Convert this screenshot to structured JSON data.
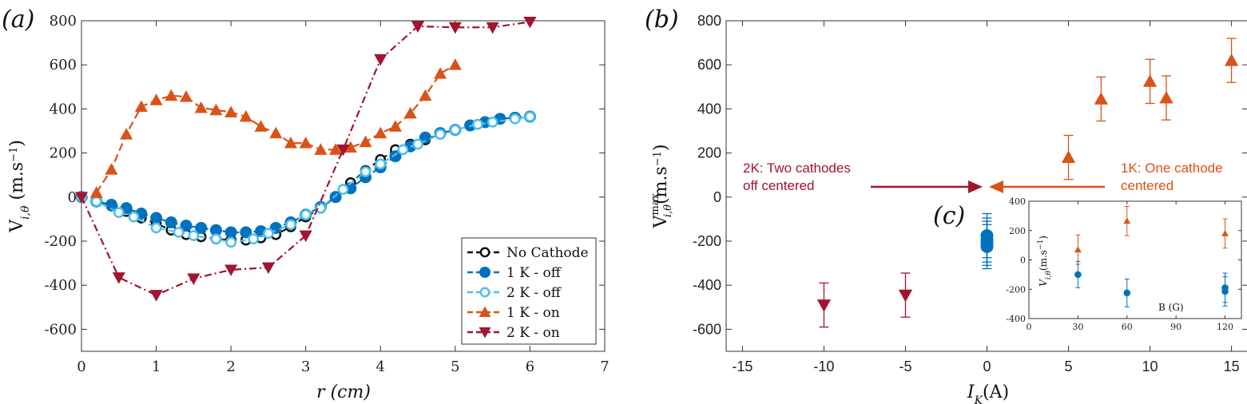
{
  "chart_data": [
    {
      "type": "line",
      "panel_label": "(a)",
      "xlabel": "r (cm)",
      "ylabel": "V_{i,θ} (m.s⁻¹)",
      "xlim": [
        0,
        7
      ],
      "ylim": [
        -700,
        800
      ],
      "xticks": [
        "0",
        "1",
        "2",
        "3",
        "4",
        "5",
        "6",
        "7"
      ],
      "yticks": [
        "-600",
        "-400",
        "-200",
        "0",
        "200",
        "400",
        "600",
        "800"
      ],
      "legend_position": "bottom-right",
      "series": [
        {
          "name": "No Cathode",
          "color": "#111111",
          "marker": "open-circle",
          "x": [
            0,
            0.2,
            0.4,
            0.6,
            0.8,
            1.0,
            1.2,
            1.4,
            1.6,
            1.8,
            2.0,
            2.2,
            2.4,
            2.6,
            2.8,
            3.0,
            3.2,
            3.4,
            3.6,
            3.8,
            4.0,
            4.2,
            4.4,
            4.6,
            4.8,
            5.0
          ],
          "values": [
            0,
            -15,
            -40,
            -65,
            -95,
            -120,
            -150,
            -170,
            -180,
            -190,
            -195,
            -195,
            -185,
            -170,
            -135,
            -90,
            -50,
            0,
            65,
            120,
            170,
            215,
            240,
            260,
            285,
            305
          ]
        },
        {
          "name": "1 K - off",
          "color": "#0072BD",
          "marker": "filled-circle",
          "x": [
            0,
            0.2,
            0.4,
            0.6,
            0.8,
            1.0,
            1.2,
            1.4,
            1.6,
            1.8,
            2.0,
            2.2,
            2.4,
            2.6,
            2.8,
            3.0,
            3.2,
            3.4,
            3.6,
            3.8,
            4.0,
            4.2,
            4.4,
            4.6,
            4.8,
            5.0,
            5.2,
            5.4,
            5.6,
            5.8,
            6.0
          ],
          "values": [
            0,
            -20,
            -35,
            -50,
            -75,
            -95,
            -115,
            -130,
            -140,
            -150,
            -160,
            -160,
            -155,
            -140,
            -115,
            -80,
            -45,
            0,
            40,
            90,
            135,
            185,
            230,
            270,
            290,
            305,
            325,
            340,
            355,
            360,
            365
          ]
        },
        {
          "name": "2 K - off",
          "color": "#4DBEEE",
          "marker": "open-circle",
          "x": [
            0,
            0.2,
            0.5,
            0.7,
            1.0,
            1.3,
            1.5,
            1.8,
            2.0,
            2.3,
            2.5,
            2.8,
            3.0,
            3.2,
            3.5,
            3.8,
            4.0,
            4.3,
            4.5,
            4.8,
            5.0,
            5.3,
            5.5,
            5.8,
            6.0
          ],
          "values": [
            0,
            -20,
            -70,
            -90,
            -140,
            -160,
            -175,
            -190,
            -205,
            -190,
            -165,
            -125,
            -80,
            -50,
            35,
            115,
            150,
            215,
            240,
            285,
            305,
            330,
            340,
            355,
            365
          ]
        },
        {
          "name": "1 K - on",
          "color": "#D95319",
          "marker": "triangle-up",
          "x": [
            0.2,
            0.4,
            0.6,
            0.8,
            1.0,
            1.2,
            1.4,
            1.6,
            1.8,
            2.0,
            2.2,
            2.4,
            2.6,
            2.8,
            3.0,
            3.2,
            3.4,
            3.6,
            3.8,
            4.0,
            4.2,
            4.4,
            4.6,
            4.8,
            5.0
          ],
          "values": [
            20,
            125,
            285,
            410,
            440,
            460,
            455,
            405,
            395,
            385,
            365,
            320,
            290,
            245,
            245,
            215,
            215,
            225,
            250,
            290,
            320,
            380,
            460,
            560,
            600
          ]
        },
        {
          "name": "2 K - on",
          "color": "#A2142F",
          "marker": "triangle-down",
          "x": [
            0,
            0.5,
            1.0,
            1.5,
            2.0,
            2.5,
            3.0,
            3.5,
            4.0,
            4.5,
            5.0,
            5.5,
            6.0
          ],
          "values": [
            0,
            -365,
            -445,
            -370,
            -330,
            -320,
            -175,
            215,
            625,
            775,
            770,
            770,
            795
          ]
        }
      ]
    },
    {
      "type": "scatter",
      "panel_label": "(b)",
      "xlabel": "I_K(A)",
      "ylabel": "V^{max}_{i,θ}(m.s⁻¹)",
      "xlim": [
        -16,
        16
      ],
      "ylim": [
        -700,
        800
      ],
      "xticks": [
        "-15",
        "-10",
        "-5",
        "0",
        "5",
        "10",
        "15"
      ],
      "yticks": [
        "-600",
        "-400",
        "-200",
        "0",
        "200",
        "400",
        "600",
        "800"
      ],
      "series": [
        {
          "name": "2K - on",
          "color": "#A2142F",
          "marker": "triangle-down",
          "x": [
            -10,
            -5
          ],
          "values": [
            -490,
            -445
          ],
          "err": [
            100,
            100
          ]
        },
        {
          "name": "off",
          "color": "#0072BD",
          "marker": "filled-circle",
          "x": [
            0,
            0,
            0,
            0
          ],
          "values": [
            -175,
            -195,
            -210,
            -225
          ],
          "err": [
            100,
            100,
            100,
            100
          ]
        },
        {
          "name": "1K - on",
          "color": "#D95319",
          "marker": "triangle-up",
          "x": [
            5,
            7,
            10,
            11,
            15
          ],
          "values": [
            180,
            445,
            525,
            450,
            620
          ],
          "err": [
            100,
            100,
            100,
            100,
            100
          ]
        }
      ],
      "annotations": [
        {
          "lines": [
            "2K: Two cathodes",
            "off centered"
          ],
          "color": "#A2142F",
          "arrow": "right"
        },
        {
          "lines": [
            "1K: One cathode",
            "centered"
          ],
          "color": "#D95319",
          "arrow": "left"
        }
      ]
    },
    {
      "type": "scatter",
      "panel_label": "(c)",
      "xlabel": "B (G)",
      "ylabel": "V_{i,θ}(m.s⁻¹)",
      "xlim": [
        0,
        130
      ],
      "ylim": [
        -400,
        400
      ],
      "xticks": [
        "0",
        "30",
        "60",
        "90",
        "120"
      ],
      "yticks": [
        "-400",
        "-200",
        "0",
        "200",
        "400"
      ],
      "series": [
        {
          "name": "on",
          "color": "#D95319",
          "marker": "triangle-up",
          "x": [
            30,
            60,
            120
          ],
          "values": [
            70,
            265,
            180
          ],
          "err": [
            100,
            100,
            100
          ]
        },
        {
          "name": "off",
          "color": "#0072BD",
          "marker": "filled-circle",
          "x": [
            30,
            60,
            120,
            120
          ],
          "values": [
            -100,
            -225,
            -190,
            -215
          ],
          "err": [
            90,
            95,
            100,
            100
          ]
        }
      ]
    }
  ],
  "legend": [
    "No Cathode",
    "1 K - off",
    "2 K - off",
    "1 K - on",
    "2 K - on"
  ]
}
